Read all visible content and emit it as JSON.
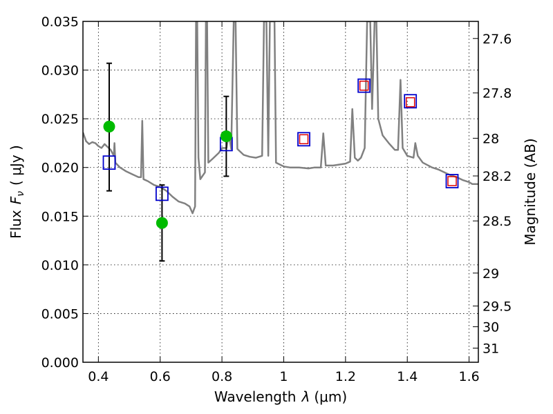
{
  "chart_data": {
    "type": "scatter",
    "xlabel_prefix": "Wavelength",
    "xlabel_symbol": "λ",
    "xlabel_unit": "(μm)",
    "ylabel_prefix": "Flux",
    "ylabel_symbol": "F",
    "ylabel_subscript": "ν",
    "ylabel_unit": "( μJy )",
    "y2label": "Magnitude (AB)",
    "xlim": [
      0.35,
      1.63
    ],
    "ylim": [
      0.0,
      0.035
    ],
    "xticks": [
      0.4,
      0.6,
      0.8,
      1.0,
      1.2,
      1.4,
      1.6
    ],
    "xtick_labels": [
      "0.4",
      "0.6",
      "0.8",
      "1",
      "1.2",
      "1.4",
      "1.6"
    ],
    "yticks": [
      0.0,
      0.005,
      0.01,
      0.015,
      0.02,
      0.025,
      0.03,
      0.035
    ],
    "ytick_labels": [
      "0.000",
      "0.005",
      "0.010",
      "0.015",
      "0.020",
      "0.025",
      "0.030",
      "0.035"
    ],
    "mag_ticks": [
      27.6,
      27.8,
      28,
      28.2,
      28.5,
      29,
      29.5,
      30,
      31
    ],
    "mag_tick_labels": [
      "27.6",
      "27.8",
      "28",
      "28.2",
      "28.5",
      "29",
      "29.5",
      "30",
      "31"
    ],
    "grid": true,
    "spectrum_color": "#808080",
    "spectrum": [
      [
        0.35,
        0.0236
      ],
      [
        0.36,
        0.0227
      ],
      [
        0.37,
        0.0224
      ],
      [
        0.38,
        0.0226
      ],
      [
        0.39,
        0.0225
      ],
      [
        0.4,
        0.0222
      ],
      [
        0.41,
        0.022
      ],
      [
        0.42,
        0.0224
      ],
      [
        0.43,
        0.0221
      ],
      [
        0.44,
        0.0218
      ],
      [
        0.45,
        0.0212
      ],
      [
        0.452,
        0.0225
      ],
      [
        0.455,
        0.0205
      ],
      [
        0.47,
        0.02
      ],
      [
        0.49,
        0.0196
      ],
      [
        0.51,
        0.0193
      ],
      [
        0.53,
        0.019
      ],
      [
        0.538,
        0.019
      ],
      [
        0.542,
        0.0248
      ],
      [
        0.546,
        0.0188
      ],
      [
        0.56,
        0.0186
      ],
      [
        0.58,
        0.0182
      ],
      [
        0.6,
        0.018
      ],
      [
        0.62,
        0.0176
      ],
      [
        0.64,
        0.017
      ],
      [
        0.66,
        0.0165
      ],
      [
        0.68,
        0.0163
      ],
      [
        0.695,
        0.016
      ],
      [
        0.705,
        0.0153
      ],
      [
        0.713,
        0.016
      ],
      [
        0.716,
        0.035
      ],
      [
        0.72,
        0.035
      ],
      [
        0.724,
        0.021
      ],
      [
        0.73,
        0.0188
      ],
      [
        0.745,
        0.0195
      ],
      [
        0.748,
        0.035
      ],
      [
        0.752,
        0.035
      ],
      [
        0.756,
        0.0205
      ],
      [
        0.77,
        0.0209
      ],
      [
        0.79,
        0.0215
      ],
      [
        0.8,
        0.022
      ],
      [
        0.815,
        0.022
      ],
      [
        0.822,
        0.0235
      ],
      [
        0.83,
        0.0219
      ],
      [
        0.838,
        0.035
      ],
      [
        0.844,
        0.035
      ],
      [
        0.85,
        0.0219
      ],
      [
        0.87,
        0.0213
      ],
      [
        0.89,
        0.0211
      ],
      [
        0.91,
        0.021
      ],
      [
        0.93,
        0.0212
      ],
      [
        0.936,
        0.035
      ],
      [
        0.944,
        0.035
      ],
      [
        0.95,
        0.0212
      ],
      [
        0.955,
        0.035
      ],
      [
        0.97,
        0.035
      ],
      [
        0.975,
        0.0205
      ],
      [
        1.0,
        0.0201
      ],
      [
        1.02,
        0.02
      ],
      [
        1.05,
        0.02
      ],
      [
        1.08,
        0.0199
      ],
      [
        1.1,
        0.02
      ],
      [
        1.12,
        0.02
      ],
      [
        1.128,
        0.0235
      ],
      [
        1.136,
        0.0202
      ],
      [
        1.16,
        0.0202
      ],
      [
        1.2,
        0.0204
      ],
      [
        1.215,
        0.0206
      ],
      [
        1.222,
        0.026
      ],
      [
        1.23,
        0.021
      ],
      [
        1.24,
        0.0207
      ],
      [
        1.25,
        0.021
      ],
      [
        1.262,
        0.022
      ],
      [
        1.27,
        0.035
      ],
      [
        1.28,
        0.035
      ],
      [
        1.286,
        0.026
      ],
      [
        1.294,
        0.035
      ],
      [
        1.3,
        0.035
      ],
      [
        1.306,
        0.025
      ],
      [
        1.32,
        0.0233
      ],
      [
        1.34,
        0.0225
      ],
      [
        1.36,
        0.0218
      ],
      [
        1.37,
        0.0218
      ],
      [
        1.378,
        0.029
      ],
      [
        1.385,
        0.022
      ],
      [
        1.4,
        0.0212
      ],
      [
        1.42,
        0.021
      ],
      [
        1.426,
        0.0225
      ],
      [
        1.434,
        0.0212
      ],
      [
        1.45,
        0.0205
      ],
      [
        1.48,
        0.02
      ],
      [
        1.5,
        0.0198
      ],
      [
        1.52,
        0.0195
      ],
      [
        1.54,
        0.0192
      ],
      [
        1.56,
        0.019
      ],
      [
        1.58,
        0.0187
      ],
      [
        1.6,
        0.0185
      ],
      [
        1.61,
        0.0183
      ],
      [
        1.63,
        0.0183
      ]
    ],
    "observed_points": [
      {
        "x": 0.435,
        "y": 0.0242,
        "yerr_low": 0.0176,
        "yerr_high": 0.0307,
        "color": "#00bb00"
      },
      {
        "x": 0.606,
        "y": 0.0143,
        "yerr_low": 0.0104,
        "yerr_high": 0.0182,
        "color": "#00bb00"
      },
      {
        "x": 0.814,
        "y": 0.0232,
        "yerr_low": 0.0191,
        "yerr_high": 0.0273,
        "color": "#00bb00"
      }
    ],
    "blue_squares": [
      {
        "x": 0.435,
        "y": 0.0205
      },
      {
        "x": 0.606,
        "y": 0.0173
      },
      {
        "x": 0.814,
        "y": 0.0224
      },
      {
        "x": 1.065,
        "y": 0.0229
      },
      {
        "x": 1.26,
        "y": 0.0284
      },
      {
        "x": 1.41,
        "y": 0.0268
      },
      {
        "x": 1.545,
        "y": 0.0186
      }
    ],
    "red_squares": [
      {
        "x": 1.065,
        "y": 0.0229
      },
      {
        "x": 1.26,
        "y": 0.0284
      },
      {
        "x": 1.41,
        "y": 0.0267
      },
      {
        "x": 1.545,
        "y": 0.0186
      }
    ],
    "colors": {
      "blue": "#0000cc",
      "red": "#dd0000",
      "errorbar": "#000000"
    }
  }
}
